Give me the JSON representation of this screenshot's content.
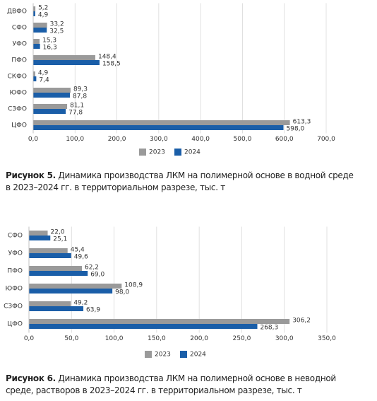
{
  "chart_data": [
    {
      "type": "bar",
      "orientation": "horizontal",
      "categories": [
        "ДВФО",
        "СФО",
        "УФО",
        "ПФО",
        "СКФО",
        "ЮФО",
        "СЗФО",
        "ЦФО"
      ],
      "series": [
        {
          "name": "2023",
          "color": "#9a9a9a",
          "values": [
            5.2,
            33.2,
            15.3,
            148.4,
            4.9,
            89.3,
            81.1,
            613.3
          ],
          "value_labels": [
            "5,2",
            "33,2",
            "15,3",
            "148,4",
            "4,9",
            "89,3",
            "81,1",
            "613,3"
          ]
        },
        {
          "name": "2024",
          "color": "#1a5ea8",
          "values": [
            4.9,
            32.5,
            16.3,
            158.5,
            7.4,
            87.8,
            77.8,
            598.0
          ],
          "value_labels": [
            "4,9",
            "32,5",
            "16,3",
            "158,5",
            "7,4",
            "87,8",
            "77,8",
            "598,0"
          ]
        }
      ],
      "xlim": [
        0,
        700
      ],
      "xticks": [
        {
          "value": 0,
          "label": "0,0"
        },
        {
          "value": 100,
          "label": "100,0"
        },
        {
          "value": 200,
          "label": "200,0"
        },
        {
          "value": 300,
          "label": "300,0"
        },
        {
          "value": 400,
          "label": "400,0"
        },
        {
          "value": 500,
          "label": "500,0"
        },
        {
          "value": 600,
          "label": "600,0"
        },
        {
          "value": 700,
          "label": "700,0"
        }
      ],
      "grid": true,
      "legend": "bottom",
      "caption_label": "Рисунок 5.",
      "caption_text": "Динамика производства ЛКМ на полимерной основе в водной среде в 2023–2024 гг. в территориальном разрезе, тыс. т"
    },
    {
      "type": "bar",
      "orientation": "horizontal",
      "categories": [
        "СФО",
        "УФО",
        "ПФО",
        "ЮФО",
        "СЗФО",
        "ЦФО"
      ],
      "series": [
        {
          "name": "2023",
          "color": "#9a9a9a",
          "values": [
            22.0,
            45.4,
            62.2,
            108.9,
            49.2,
            306.2
          ],
          "value_labels": [
            "22,0",
            "45,4",
            "62,2",
            "108,9",
            "49,2",
            "306,2"
          ]
        },
        {
          "name": "2024",
          "color": "#1a5ea8",
          "values": [
            25.1,
            49.6,
            69.0,
            98.0,
            63.9,
            268.3
          ],
          "value_labels": [
            "25,1",
            "49,6",
            "69,0",
            "98,0",
            "63,9",
            "268,3"
          ]
        }
      ],
      "xlim": [
        0,
        350
      ],
      "xticks": [
        {
          "value": 0,
          "label": "0,0"
        },
        {
          "value": 50,
          "label": "50,0"
        },
        {
          "value": 100,
          "label": "100,0"
        },
        {
          "value": 150,
          "label": "150,0"
        },
        {
          "value": 200,
          "label": "200,0"
        },
        {
          "value": 250,
          "label": "250,0"
        },
        {
          "value": 300,
          "label": "300,0"
        },
        {
          "value": 350,
          "label": "350,0"
        }
      ],
      "grid": true,
      "legend": "bottom",
      "caption_label": "Рисунок 6.",
      "caption_text": "Динамика производства ЛКМ на полимерной основе в неводной среде, растворов в 2023–2024 гг. в территориальном разрезе, тыс. т"
    }
  ]
}
